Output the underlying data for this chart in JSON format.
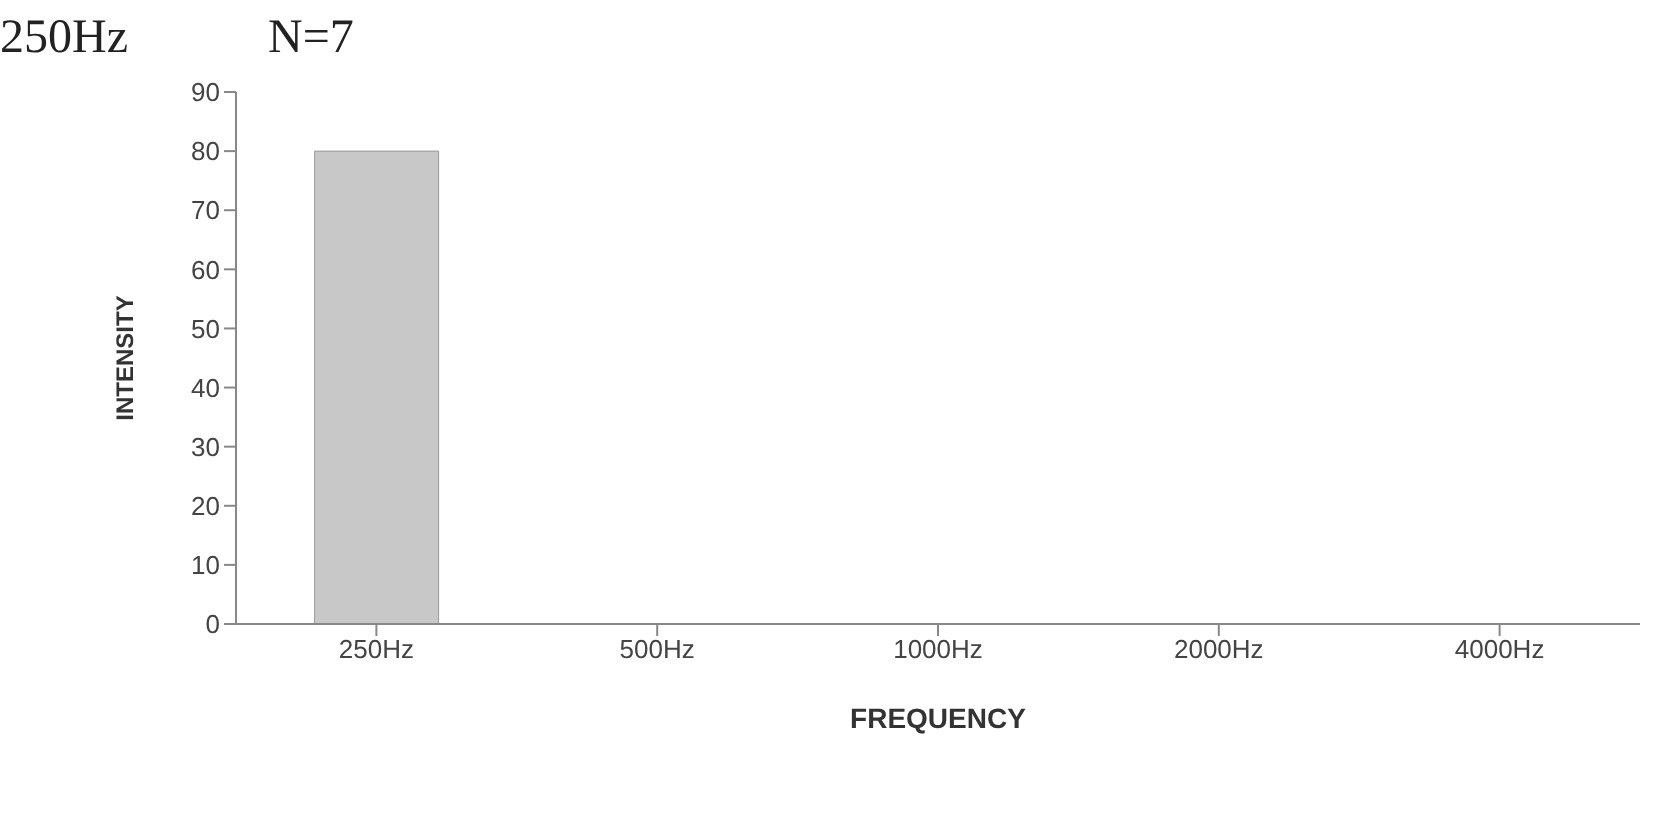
{
  "chart_data": {
    "type": "bar",
    "title": "250Hz",
    "subtitle": "N=7",
    "xlabel": "FREQUENCY",
    "ylabel": "INTENSITY",
    "categories": [
      "250Hz",
      "500Hz",
      "1000Hz",
      "2000Hz",
      "4000Hz"
    ],
    "values": [
      80,
      0,
      0,
      0,
      0
    ],
    "color": "#c8c8c8",
    "ylim": [
      0,
      90
    ],
    "yticks": [
      0,
      10,
      20,
      30,
      40,
      50,
      60,
      70,
      80,
      90
    ],
    "grid": false
  }
}
